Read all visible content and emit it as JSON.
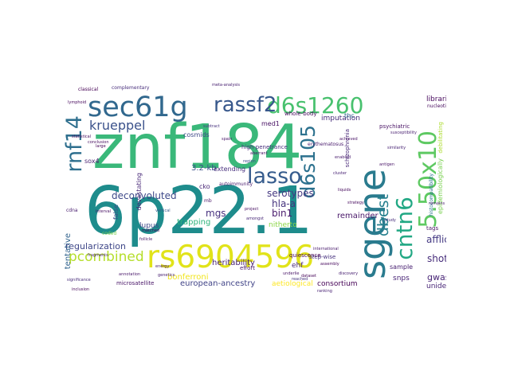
{
  "words": {
    "znf184": {
      "text": "znf184",
      "color": "#3ab87a"
    },
    "p6p22": {
      "text": "6p22.1",
      "color": "#1e8c8c"
    },
    "sgene": {
      "text": "sgene",
      "color": "#2a7b8e"
    },
    "rs6904596": {
      "text": "rs6904596",
      "color": "#e1e31a"
    },
    "sec61g": {
      "text": "sec61g",
      "color": "#31688e"
    },
    "d6s1260": {
      "text": "d6s1260",
      "color": "#48c16e"
    },
    "rassf2": {
      "text": "rassf2",
      "color": "#38588c"
    },
    "lasso": {
      "text": "lasso",
      "color": "#365c8d"
    },
    "d6s105": {
      "text": "d6s105",
      "color": "#2c718e"
    },
    "x550": {
      "text": "5.50x10",
      "color": "#5ec962"
    },
    "cntn6": {
      "text": "cntn6",
      "color": "#22a884"
    },
    "rnf14": {
      "text": "rnf14",
      "color": "#2e6f8e"
    },
    "krueppel": {
      "text": "krueppel",
      "color": "#3b528b"
    },
    "dbest": {
      "text": "dbest",
      "color": "#27808e"
    },
    "pcombined": {
      "text": "pcombined",
      "color": "#b5de2b"
    },
    "deconvoluted": {
      "text": "deconvoluted",
      "color": "#3e4989"
    },
    "serotypes": {
      "text": "serotypes",
      "color": "#453882"
    },
    "hlaa": {
      "text": "hla-a",
      "color": "#46337e"
    },
    "bin1": {
      "text": "bin1",
      "color": "#481a6c"
    },
    "mgs": {
      "text": "mgs",
      "color": "#46307e"
    },
    "trapping": {
      "text": "trapping",
      "color": "#2fb47c"
    },
    "regularization": {
      "text": "regularization",
      "color": "#3f4788"
    },
    "bonferroni": {
      "text": "bonferroni",
      "color": "#f1e51d"
    },
    "europeanancestry": {
      "text": "european-ancestry",
      "color": "#414487"
    },
    "consortium": {
      "text": "consortium",
      "color": "#440154"
    },
    "afflicted": {
      "text": "afflicted",
      "color": "#443983"
    },
    "shotgun": {
      "text": "shotgun",
      "color": "#472d7b"
    },
    "gwas": {
      "text": "gwas",
      "color": "#482576"
    },
    "imputation": {
      "text": "imputation",
      "color": "#472c7a"
    },
    "remainder": {
      "text": "remainder",
      "color": "#481769"
    },
    "libraries": {
      "text": "libraries",
      "color": "#46085c"
    },
    "tentative": {
      "text": "tentative",
      "color": "#32648e"
    },
    "devastating": {
      "text": "devastating",
      "color": "#482878"
    },
    "cosmids": {
      "text": "cosmids",
      "color": "#3f4889"
    },
    "sox4": {
      "text": "sox4",
      "color": "#481f70"
    },
    "med1": {
      "text": "med1",
      "color": "#471063"
    },
    "nitherto": {
      "text": "nitherto",
      "color": "#8bd646"
    },
    "ehf": {
      "text": "ehf",
      "color": "#482979"
    },
    "heritability": {
      "text": "heritability",
      "color": "#482173"
    },
    "snps": {
      "text": "snps",
      "color": "#482475"
    },
    "unidentified": {
      "text": "unidentified",
      "color": "#482677"
    },
    "sample": {
      "text": "sample",
      "color": "#482071"
    },
    "aetiological": {
      "text": "aetiological",
      "color": "#fde725"
    },
    "epidemiologically": {
      "text": "epidemiologically",
      "color": "#7ad151"
    },
    "kb32": {
      "text": "3.2-kb",
      "color": "#3c4f8a"
    },
    "extending": {
      "text": "extending",
      "color": "#472f7d"
    },
    "cko": {
      "text": "cko",
      "color": "#482576"
    },
    "false": {
      "text": "false",
      "color": "#3d4e8a"
    },
    "cdna": {
      "text": "cdna",
      "color": "#481c6e"
    },
    "tags": {
      "text": "tags",
      "color": "#471365"
    },
    "schizophrenia": {
      "text": "schizophrenia",
      "color": "#482878"
    },
    "thc": {
      "text": "thc",
      "color": "#31688e"
    },
    "psychiatric": {
      "text": "psychiatric",
      "color": "#471063"
    },
    "whole_body": {
      "text": "whole-body",
      "color": "#46085c"
    },
    "highpenetrance": {
      "text": "high-penetrance",
      "color": "#472e7c"
    },
    "stepwise": {
      "text": "step-wise",
      "color": "#46317e"
    },
    "quiescence": {
      "text": "quiescence",
      "color": "#440154"
    },
    "effort": {
      "text": "effort",
      "color": "#481668"
    },
    "histocompatibility": {
      "text": "histocompatibility",
      "color": "#2a768e"
    },
    "debilitating": {
      "text": "debilitating",
      "color": "#addc30"
    },
    "nucleotides": {
      "text": "nucleotides",
      "color": "#460a5d"
    },
    "lupus": {
      "text": "lupus",
      "color": "#3f4788"
    },
    "microsatellite": {
      "text": "microsatellite",
      "color": "#481467"
    },
    "autoimmunity": {
      "text": "autoimmunity",
      "color": "#481c6e"
    },
    "classical": {
      "text": "classical",
      "color": "#440154"
    },
    "metaanalysis": {
      "text": "meta-analysis",
      "color": "#482071"
    },
    "complementary": {
      "text": "complementary",
      "color": "#472d7b"
    },
    "statistical": {
      "text": "statistical",
      "color": "#470e61"
    },
    "large": {
      "text": "large",
      "color": "#440256"
    },
    "subtract": {
      "text": "subtract",
      "color": "#46327e"
    },
    "susceptibility": {
      "text": "susceptibility",
      "color": "#481f70"
    },
    "similarity": {
      "text": "similarity",
      "color": "#482374"
    },
    "enabled": {
      "text": "enabled",
      "color": "#481b6d"
    },
    "achieved": {
      "text": "achieved",
      "color": "#471164"
    },
    "erythematosus": {
      "text": "erythematosus",
      "color": "#481a6c"
    },
    "liquids": {
      "text": "liquids",
      "color": "#460a5d"
    },
    "coded": {
      "text": "coded",
      "color": "#7ad151"
    },
    "antigen": {
      "text": "antigen",
      "color": "#481467"
    },
    "energy": {
      "text": "energy",
      "color": "#481b6d"
    },
    "matched": {
      "text": "matched",
      "color": "#46085c"
    },
    "genetics": {
      "text": "genetics",
      "color": "#482071"
    },
    "fragments": {
      "text": "fragments",
      "color": "#482576"
    },
    "follicle": {
      "text": "follicle",
      "color": "#481769"
    },
    "interval": {
      "text": "interval",
      "color": "#471063"
    },
    "vertical": {
      "text": "vertical",
      "color": "#38598c"
    },
    "mb": {
      "text": "mb",
      "color": "#481668"
    },
    "significance": {
      "text": "significance",
      "color": "#472c7a"
    },
    "inclusion": {
      "text": "inclusion",
      "color": "#46075a"
    },
    "amongst": {
      "text": "amongst",
      "color": "#482878"
    },
    "dataset": {
      "text": "dataset",
      "color": "#450457"
    },
    "underlie": {
      "text": "underlie",
      "color": "#481467"
    },
    "cluster": {
      "text": "cluster",
      "color": "#482374"
    },
    "assembly": {
      "text": "assembly",
      "color": "#46085c"
    },
    "project": {
      "text": "project",
      "color": "#471063"
    },
    "international": {
      "text": "international",
      "color": "#481a6c"
    },
    "reached": {
      "text": "reached",
      "color": "#46337e"
    },
    "ranking": {
      "text": "ranking",
      "color": "#482173"
    },
    "spain": {
      "text": "spain",
      "color": "#481769"
    },
    "conclusion": {
      "text": "conclusion",
      "color": "#460b5e"
    },
    "lymphoid": {
      "text": "lymphoid",
      "color": "#46085c"
    },
    "remains": {
      "text": "remains",
      "color": "#481c6e"
    },
    "discovery": {
      "text": "discovery",
      "color": "#482071"
    },
    "aberrant": {
      "text": "aberrant",
      "color": "#471365"
    },
    "region": {
      "text": "region",
      "color": "#3e4c8a"
    },
    "study": {
      "text": "study",
      "color": "#472d7b"
    },
    "annotation": {
      "text": "annotation",
      "color": "#481769"
    },
    "strategy": {
      "text": "strategy",
      "color": "#460a5d"
    }
  }
}
